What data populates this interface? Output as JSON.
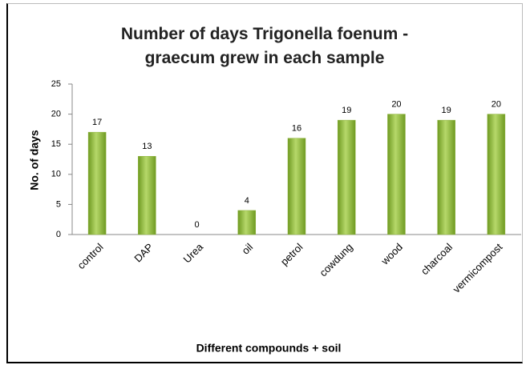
{
  "chart_data": {
    "type": "bar",
    "title": "Number of days Trigonella foenum - graecum grew in each sample",
    "y_label": "No. of days",
    "x_label": "Different compounds + soil",
    "categories": [
      "control",
      "DAP",
      "Urea",
      "oil",
      "petrol",
      "cowdung",
      "wood",
      "charcoal",
      "vermicompost"
    ],
    "values": [
      17,
      13,
      0,
      4,
      16,
      19,
      20,
      19,
      20
    ],
    "color": "#8db33a",
    "ylim": [
      0,
      25
    ],
    "yticks": [
      0,
      5,
      10,
      15,
      20,
      25
    ],
    "grid": false
  }
}
